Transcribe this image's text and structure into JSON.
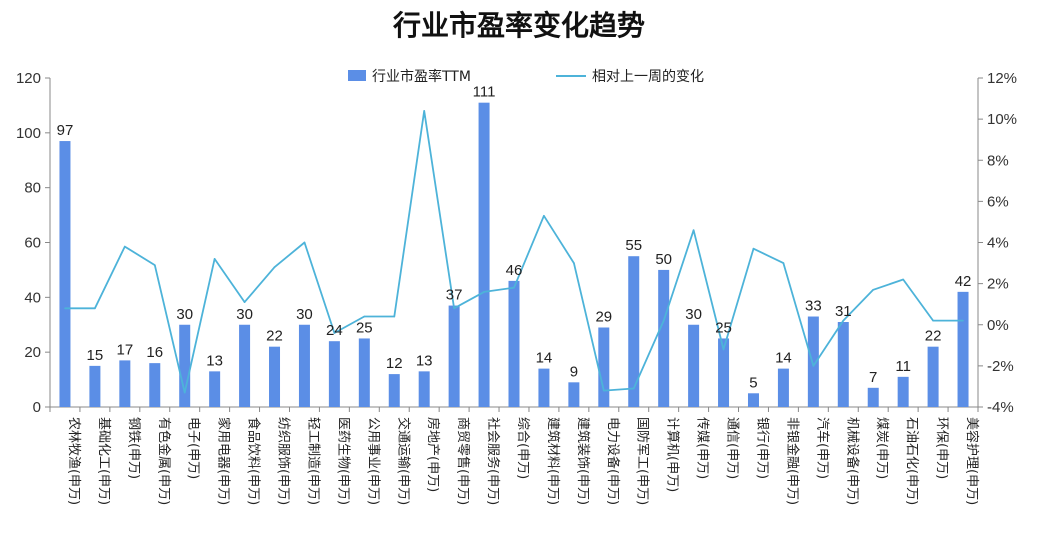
{
  "chart_data": {
    "type": "bar+line",
    "title": "行业市盈率变化趋势",
    "categories": [
      "农林牧渔(申万)",
      "基础化工(申万)",
      "钢铁(申万)",
      "有色金属(申万)",
      "电子(申万)",
      "家用电器(申万)",
      "食品饮料(申万)",
      "纺织服饰(申万)",
      "轻工制造(申万)",
      "医药生物(申万)",
      "公用事业(申万)",
      "交通运输(申万)",
      "房地产(申万)",
      "商贸零售(申万)",
      "社会服务(申万)",
      "综合(申万)",
      "建筑材料(申万)",
      "建筑装饰(申万)",
      "电力设备(申万)",
      "国防军工(申万)",
      "计算机(申万)",
      "传媒(申万)",
      "通信(申万)",
      "银行(申万)",
      "非银金融(申万)",
      "汽车(申万)",
      "机械设备(申万)",
      "煤炭(申万)",
      "石油石化(申万)",
      "环保(申万)",
      "美容护理(申万)"
    ],
    "series": [
      {
        "name": "行业市盈率TTM",
        "type": "bar",
        "axis": "left",
        "color": "#5b8ee6",
        "values": [
          97,
          15,
          17,
          16,
          30,
          13,
          30,
          22,
          30,
          24,
          25,
          12,
          13,
          37,
          111,
          46,
          14,
          9,
          29,
          55,
          50,
          30,
          25,
          5,
          14,
          33,
          31,
          7,
          11,
          22,
          42
        ],
        "labels": [
          "97",
          "15",
          "17",
          "16",
          "30",
          "13",
          "30",
          "22",
          "30",
          "24",
          "25",
          "12",
          "13",
          "37",
          "111",
          "46",
          "14",
          "9",
          "29",
          "55",
          "50",
          "30",
          "25",
          "5",
          "14",
          "33",
          "31",
          "7",
          "11",
          "22",
          "42"
        ]
      },
      {
        "name": "相对上一周的变化",
        "type": "line",
        "axis": "right",
        "color": "#4db3d9",
        "values": [
          0.8,
          0.8,
          3.8,
          2.9,
          -3.3,
          3.2,
          1.1,
          2.8,
          4.0,
          -0.4,
          0.4,
          0.4,
          10.4,
          0.8,
          1.6,
          1.8,
          5.3,
          3.0,
          -3.2,
          -3.1,
          0.2,
          4.6,
          -1.2,
          3.7,
          3.0,
          -2.0,
          0.2,
          1.7,
          2.2,
          0.2,
          0.2
        ]
      }
    ],
    "left_axis": {
      "min": 0,
      "max": 120,
      "ticks": [
        "0",
        "20",
        "40",
        "60",
        "80",
        "100",
        "120"
      ]
    },
    "right_axis": {
      "min": -4,
      "max": 12,
      "ticks": [
        "-4%",
        "-2%",
        "0%",
        "2%",
        "4%",
        "6%",
        "8%",
        "10%",
        "12%"
      ]
    },
    "legend": {
      "position": "top",
      "items": [
        "行业市盈率TTM",
        "相对上一周的变化"
      ]
    }
  }
}
